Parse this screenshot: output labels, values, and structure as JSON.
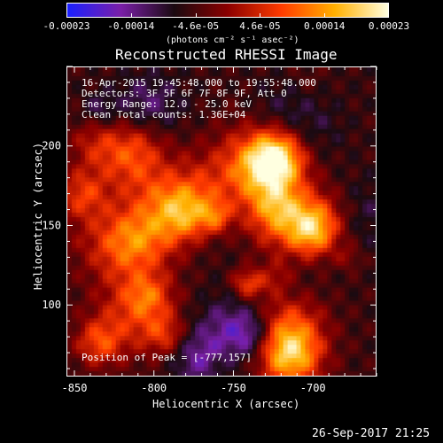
{
  "colorbar": {
    "tick_labels": [
      "-0.00023",
      "-0.00014",
      "-4.6e-05",
      "4.6e-05",
      "0.00014",
      "0.00023"
    ],
    "units_label": "(photons cm⁻² s⁻¹ asec⁻²)",
    "colors": [
      "#1a20ff",
      "#7a1fa8",
      "#1a0a10",
      "#8b0000",
      "#ff3b00",
      "#ffb000",
      "#ffffe0"
    ]
  },
  "title": "Reconstructed RHESSI Image",
  "overlay": {
    "time_range": "16-Apr-2015 19:45:48.000 to 19:55:48.000",
    "detectors": "Detectors: 3F 5F 6F 7F 8F 9F, Att 0",
    "energy_range": "Energy Range: 12.0 - 25.0 keV",
    "clean": "Clean     Total counts: 1.36E+04",
    "peak": "Position of Peak = [-777,157]"
  },
  "axes": {
    "xlabel": "Heliocentric X (arcsec)",
    "ylabel": "Heliocentric Y (arcsec)",
    "x_ticks": [
      -850,
      -800,
      -750,
      -700
    ],
    "y_ticks": [
      100,
      150,
      200
    ],
    "xlim": [
      -855,
      -660
    ],
    "ylim": [
      55,
      250
    ]
  },
  "footer": {
    "date": "26-Sep-2017 21:25"
  },
  "chart_data": {
    "type": "heatmap",
    "title": "Reconstructed RHESSI Image",
    "xlabel": "Heliocentric X (arcsec)",
    "ylabel": "Heliocentric Y (arcsec)",
    "xlim": [
      -855,
      -660
    ],
    "ylim": [
      55,
      250
    ],
    "color_range": [
      -0.00023,
      0.00023
    ],
    "peak_position": [
      -777,
      157
    ]
  }
}
